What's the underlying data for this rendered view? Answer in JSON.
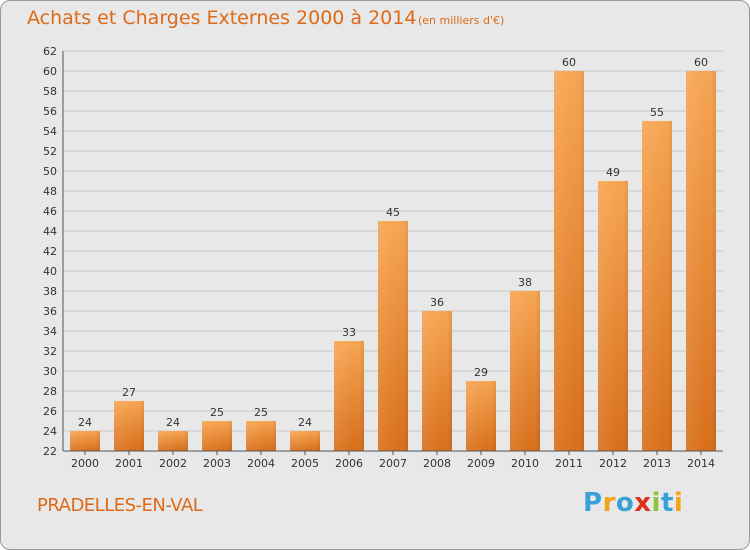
{
  "header": {
    "title": "Achats et Charges Externes 2000 à 2014",
    "unit_note": "(en milliers d'€)"
  },
  "footer": {
    "city": "PRADELLES-EN-VAL",
    "logo_text": "Proxiti",
    "logo_colors": [
      "#3aa1d8",
      "#f2a51a",
      "#3aa1d8",
      "#e0301e",
      "#8cc63f",
      "#3aa1d8",
      "#f2a51a"
    ]
  },
  "chart_data": {
    "type": "bar",
    "categories": [
      "2000",
      "2001",
      "2002",
      "2003",
      "2004",
      "2005",
      "2006",
      "2007",
      "2008",
      "2009",
      "2010",
      "2011",
      "2012",
      "2013",
      "2014"
    ],
    "values": [
      24,
      27,
      24,
      25,
      25,
      24,
      33,
      45,
      36,
      29,
      38,
      60,
      49,
      55,
      60
    ],
    "ylim": [
      22,
      62
    ],
    "yticks": [
      22,
      24,
      26,
      28,
      30,
      32,
      34,
      36,
      38,
      40,
      42,
      44,
      46,
      48,
      50,
      52,
      54,
      56,
      58,
      60,
      62
    ],
    "grid": true,
    "bar_color_top": "#f7a551",
    "bar_color_bottom": "#d86e1a",
    "grid_color": "#c8c8c8"
  }
}
